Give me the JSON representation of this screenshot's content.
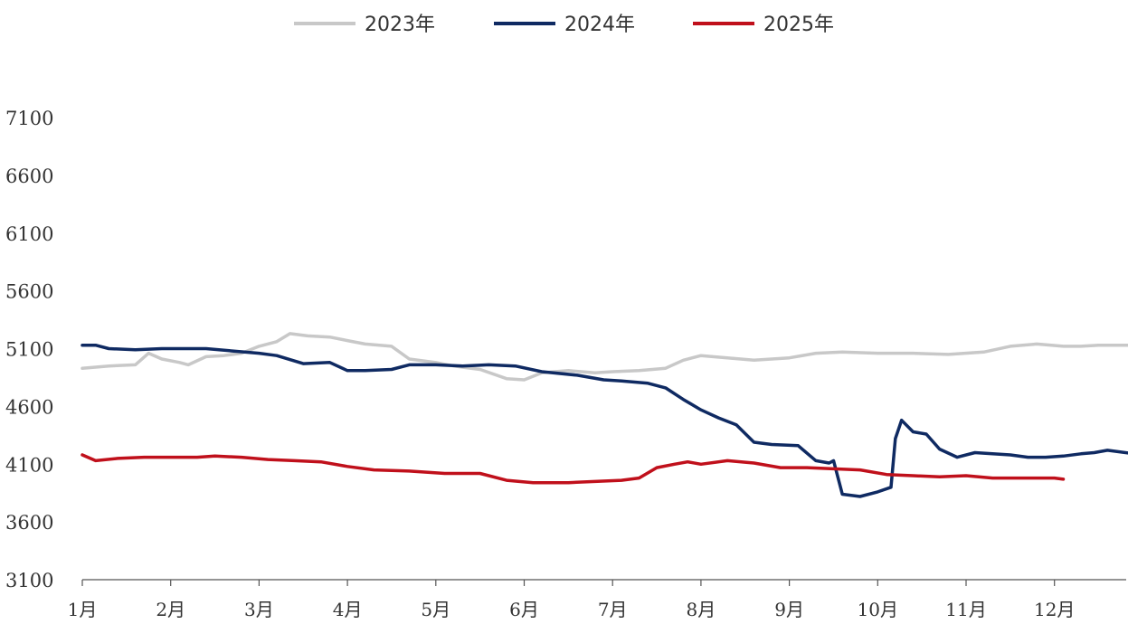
{
  "chart_data": {
    "type": "line",
    "title": "",
    "xlabel": "",
    "ylabel": "",
    "ylim": [
      3100,
      7100
    ],
    "yticks": [
      "3100",
      "3600",
      "4100",
      "4600",
      "5100",
      "5600",
      "6100",
      "6600",
      "7100"
    ],
    "xticks": [
      "1月",
      "2月",
      "3月",
      "4月",
      "5月",
      "6月",
      "7月",
      "8月",
      "9月",
      "10月",
      "11月",
      "12月"
    ],
    "x_range_months": [
      1,
      12.9
    ],
    "grid": false,
    "legend_position": "top-center",
    "series": [
      {
        "name": "2023年",
        "color": "#c8c8c8",
        "points": [
          [
            1.0,
            4930
          ],
          [
            1.3,
            4950
          ],
          [
            1.6,
            4960
          ],
          [
            1.75,
            5060
          ],
          [
            1.9,
            5010
          ],
          [
            2.1,
            4980
          ],
          [
            2.2,
            4960
          ],
          [
            2.4,
            5030
          ],
          [
            2.6,
            5040
          ],
          [
            2.8,
            5060
          ],
          [
            3.0,
            5120
          ],
          [
            3.2,
            5160
          ],
          [
            3.35,
            5230
          ],
          [
            3.55,
            5210
          ],
          [
            3.8,
            5200
          ],
          [
            4.0,
            5170
          ],
          [
            4.2,
            5140
          ],
          [
            4.5,
            5120
          ],
          [
            4.7,
            5010
          ],
          [
            5.0,
            4980
          ],
          [
            5.2,
            4950
          ],
          [
            5.5,
            4920
          ],
          [
            5.8,
            4840
          ],
          [
            6.0,
            4830
          ],
          [
            6.2,
            4890
          ],
          [
            6.5,
            4910
          ],
          [
            6.8,
            4890
          ],
          [
            7.0,
            4900
          ],
          [
            7.3,
            4910
          ],
          [
            7.6,
            4930
          ],
          [
            7.8,
            5000
          ],
          [
            8.0,
            5040
          ],
          [
            8.3,
            5020
          ],
          [
            8.6,
            5000
          ],
          [
            9.0,
            5020
          ],
          [
            9.3,
            5060
          ],
          [
            9.6,
            5070
          ],
          [
            10.0,
            5060
          ],
          [
            10.4,
            5060
          ],
          [
            10.8,
            5050
          ],
          [
            11.2,
            5070
          ],
          [
            11.5,
            5120
          ],
          [
            11.8,
            5140
          ],
          [
            12.1,
            5120
          ],
          [
            12.3,
            5120
          ],
          [
            12.5,
            5130
          ],
          [
            12.9,
            5130
          ]
        ]
      },
      {
        "name": "2024年",
        "color": "#0f2a62",
        "points": [
          [
            1.0,
            5130
          ],
          [
            1.15,
            5130
          ],
          [
            1.3,
            5100
          ],
          [
            1.6,
            5090
          ],
          [
            1.9,
            5100
          ],
          [
            2.2,
            5100
          ],
          [
            2.4,
            5100
          ],
          [
            2.7,
            5080
          ],
          [
            3.0,
            5060
          ],
          [
            3.2,
            5040
          ],
          [
            3.5,
            4970
          ],
          [
            3.8,
            4980
          ],
          [
            4.0,
            4910
          ],
          [
            4.2,
            4910
          ],
          [
            4.5,
            4920
          ],
          [
            4.7,
            4960
          ],
          [
            5.0,
            4960
          ],
          [
            5.3,
            4950
          ],
          [
            5.6,
            4960
          ],
          [
            5.9,
            4950
          ],
          [
            6.2,
            4900
          ],
          [
            6.6,
            4870
          ],
          [
            6.9,
            4830
          ],
          [
            7.1,
            4820
          ],
          [
            7.4,
            4800
          ],
          [
            7.6,
            4760
          ],
          [
            7.8,
            4660
          ],
          [
            8.0,
            4570
          ],
          [
            8.2,
            4500
          ],
          [
            8.4,
            4440
          ],
          [
            8.6,
            4290
          ],
          [
            8.8,
            4270
          ],
          [
            9.1,
            4260
          ],
          [
            9.3,
            4130
          ],
          [
            9.45,
            4110
          ],
          [
            9.5,
            4130
          ],
          [
            9.6,
            3840
          ],
          [
            9.8,
            3820
          ],
          [
            10.0,
            3860
          ],
          [
            10.15,
            3900
          ],
          [
            10.2,
            4320
          ],
          [
            10.27,
            4480
          ],
          [
            10.4,
            4380
          ],
          [
            10.55,
            4360
          ],
          [
            10.7,
            4230
          ],
          [
            10.9,
            4160
          ],
          [
            11.1,
            4200
          ],
          [
            11.3,
            4190
          ],
          [
            11.5,
            4180
          ],
          [
            11.7,
            4160
          ],
          [
            11.9,
            4160
          ],
          [
            12.1,
            4170
          ],
          [
            12.3,
            4190
          ],
          [
            12.45,
            4200
          ],
          [
            12.6,
            4220
          ],
          [
            12.9,
            4190
          ]
        ]
      },
      {
        "name": "2025年",
        "color": "#c0101b",
        "points": [
          [
            1.0,
            4180
          ],
          [
            1.15,
            4130
          ],
          [
            1.4,
            4150
          ],
          [
            1.7,
            4160
          ],
          [
            2.0,
            4160
          ],
          [
            2.3,
            4160
          ],
          [
            2.5,
            4170
          ],
          [
            2.8,
            4160
          ],
          [
            3.1,
            4140
          ],
          [
            3.4,
            4130
          ],
          [
            3.7,
            4120
          ],
          [
            4.0,
            4080
          ],
          [
            4.3,
            4050
          ],
          [
            4.7,
            4040
          ],
          [
            5.1,
            4020
          ],
          [
            5.5,
            4020
          ],
          [
            5.8,
            3960
          ],
          [
            6.1,
            3940
          ],
          [
            6.5,
            3940
          ],
          [
            6.8,
            3950
          ],
          [
            7.1,
            3960
          ],
          [
            7.3,
            3980
          ],
          [
            7.5,
            4070
          ],
          [
            7.7,
            4100
          ],
          [
            7.85,
            4120
          ],
          [
            8.0,
            4100
          ],
          [
            8.3,
            4130
          ],
          [
            8.6,
            4110
          ],
          [
            8.9,
            4070
          ],
          [
            9.2,
            4070
          ],
          [
            9.5,
            4060
          ],
          [
            9.8,
            4050
          ],
          [
            10.1,
            4010
          ],
          [
            10.4,
            4000
          ],
          [
            10.7,
            3990
          ],
          [
            11.0,
            4000
          ],
          [
            11.3,
            3980
          ],
          [
            11.7,
            3980
          ],
          [
            12.0,
            3980
          ],
          [
            12.1,
            3970
          ]
        ]
      }
    ]
  }
}
